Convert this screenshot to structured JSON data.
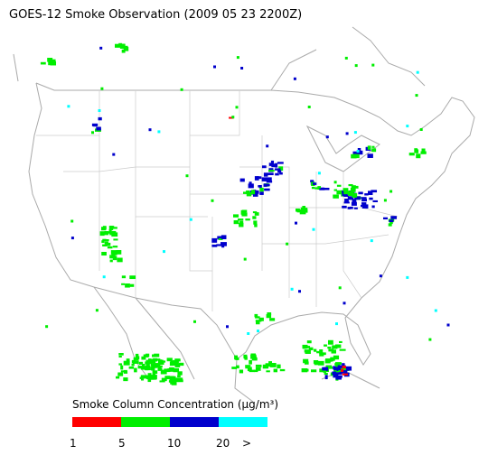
{
  "title": "GOES-12 Smoke Observation (2009 05 23  2200Z)",
  "legend": {
    "title": "Smoke Column Concentration (μg/m³)",
    "colors": [
      "#ff0000",
      "#00ee00",
      "#0000cc",
      "#00ffff"
    ],
    "labels": [
      "1",
      "5",
      "10",
      "20",
      ">"
    ]
  }
}
